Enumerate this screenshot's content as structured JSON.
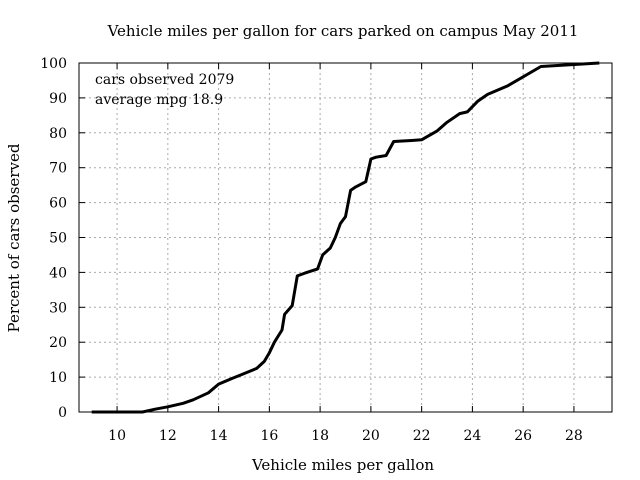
{
  "chart_data": {
    "type": "line",
    "title": "Vehicle miles per gallon for cars parked on campus May 2011",
    "xlabel": "Vehicle miles per gallon",
    "ylabel": "Percent of cars observed",
    "xlim": [
      8.5,
      29.5
    ],
    "ylim": [
      0,
      100
    ],
    "x_ticks": [
      10,
      12,
      14,
      16,
      18,
      20,
      22,
      24,
      26,
      28
    ],
    "y_ticks": [
      0,
      10,
      20,
      30,
      40,
      50,
      60,
      70,
      80,
      90,
      100
    ],
    "grid": true,
    "line_color": "#000000",
    "annotations": [
      "cars observed 2079",
      "average mpg 18.9"
    ],
    "series": [
      {
        "x": [
          11.0,
          11.5,
          12.0,
          12.6,
          13.0,
          13.6,
          14.0,
          14.5,
          15.0,
          15.5,
          15.8,
          16.0,
          16.2,
          16.5,
          16.6,
          16.9,
          17.1,
          17.4,
          17.9,
          18.1,
          18.4,
          18.6,
          18.8,
          19.0,
          19.2,
          19.4,
          19.8,
          20.0,
          20.2,
          20.6,
          20.9,
          21.6,
          22.0,
          22.6,
          23.0,
          23.5,
          23.8,
          24.2,
          24.6,
          25.4,
          26.7,
          29.0
        ],
        "y": [
          0,
          0.8,
          1.5,
          2.5,
          3.5,
          5.5,
          8,
          9.5,
          11,
          12.5,
          14.5,
          17,
          20,
          23.5,
          28,
          30.5,
          39,
          39.8,
          41,
          45,
          47,
          50,
          54,
          56,
          63.5,
          64.5,
          66,
          72.5,
          73,
          73.5,
          77.5,
          77.8,
          78,
          80.5,
          83,
          85.5,
          86,
          89,
          91,
          93.5,
          99,
          100
        ]
      }
    ]
  }
}
